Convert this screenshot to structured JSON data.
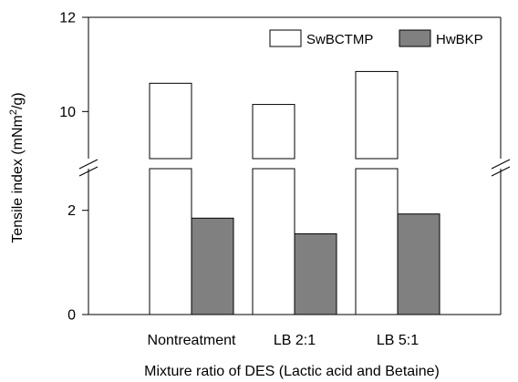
{
  "chart_data": {
    "type": "bar",
    "title": "",
    "xlabel": "Mixture ratio of DES (Lactic acid and Betaine)",
    "ylabel": "Tensile index (mNm²/g)",
    "ylabel_parts": {
      "main": "Tensile index (mNm",
      "sup": "2",
      "tail": "/g)"
    },
    "categories": [
      "Nontreatment",
      "LB 2:1",
      "LB 5:1"
    ],
    "series": [
      {
        "name": "SwBCTMP",
        "values": [
          10.6,
          10.15,
          10.85
        ],
        "color": "#ffffff"
      },
      {
        "name": "HwBKP",
        "values": [
          1.85,
          1.55,
          1.93
        ],
        "color": "#808080"
      }
    ],
    "y_axis_broken": true,
    "y_segments": [
      {
        "range": [
          0,
          2.8
        ],
        "ticks": [
          0,
          2
        ]
      },
      {
        "range": [
          9.0,
          12
        ],
        "ticks": [
          10,
          12
        ]
      }
    ],
    "legend_position": "top-right",
    "grid": false
  }
}
